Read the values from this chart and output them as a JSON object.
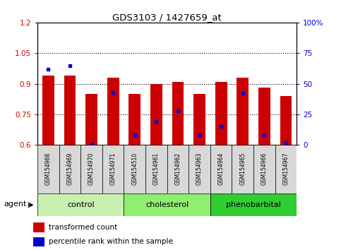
{
  "title": "GDS3103 / 1427659_at",
  "samples": [
    "GSM154968",
    "GSM154969",
    "GSM154970",
    "GSM154971",
    "GSM154510",
    "GSM154961",
    "GSM154962",
    "GSM154963",
    "GSM154964",
    "GSM154965",
    "GSM154966",
    "GSM154967"
  ],
  "transformed_count": [
    0.94,
    0.94,
    0.85,
    0.93,
    0.85,
    0.9,
    0.91,
    0.85,
    0.91,
    0.93,
    0.88,
    0.84
  ],
  "percentile_rank_pct": [
    62,
    65,
    1,
    43,
    8,
    19,
    28,
    8,
    15,
    42,
    8,
    2
  ],
  "ylim_left": [
    0.6,
    1.2
  ],
  "ylim_right": [
    0,
    100
  ],
  "yticks_left": [
    0.6,
    0.75,
    0.9,
    1.05,
    1.2
  ],
  "yticks_right": [
    0,
    25,
    50,
    75,
    100
  ],
  "ytick_labels_left": [
    "0.6",
    "0.75",
    "0.9",
    "1.05",
    "1.2"
  ],
  "ytick_labels_right": [
    "0",
    "25",
    "50",
    "75",
    "100%"
  ],
  "groups": [
    {
      "label": "control",
      "start": 0,
      "end": 4,
      "color": "#c8f0b0"
    },
    {
      "label": "cholesterol",
      "start": 4,
      "end": 8,
      "color": "#90ee70"
    },
    {
      "label": "phenobarbital",
      "start": 8,
      "end": 12,
      "color": "#32cd32"
    }
  ],
  "bar_color": "#cc0000",
  "dot_color": "#0000cc",
  "bar_width": 0.55,
  "bar_bottom": 0.6,
  "legend_labels": [
    "transformed count",
    "percentile rank within the sample"
  ],
  "legend_colors": [
    "#cc0000",
    "#0000cc"
  ],
  "agent_label": "agent",
  "tick_color_left": "#cc0000",
  "tick_color_right": "#0000cc",
  "plot_bg": "#ffffff",
  "sample_box_color": "#d8d8d8",
  "hline_values": [
    0.75,
    0.9,
    1.05
  ]
}
